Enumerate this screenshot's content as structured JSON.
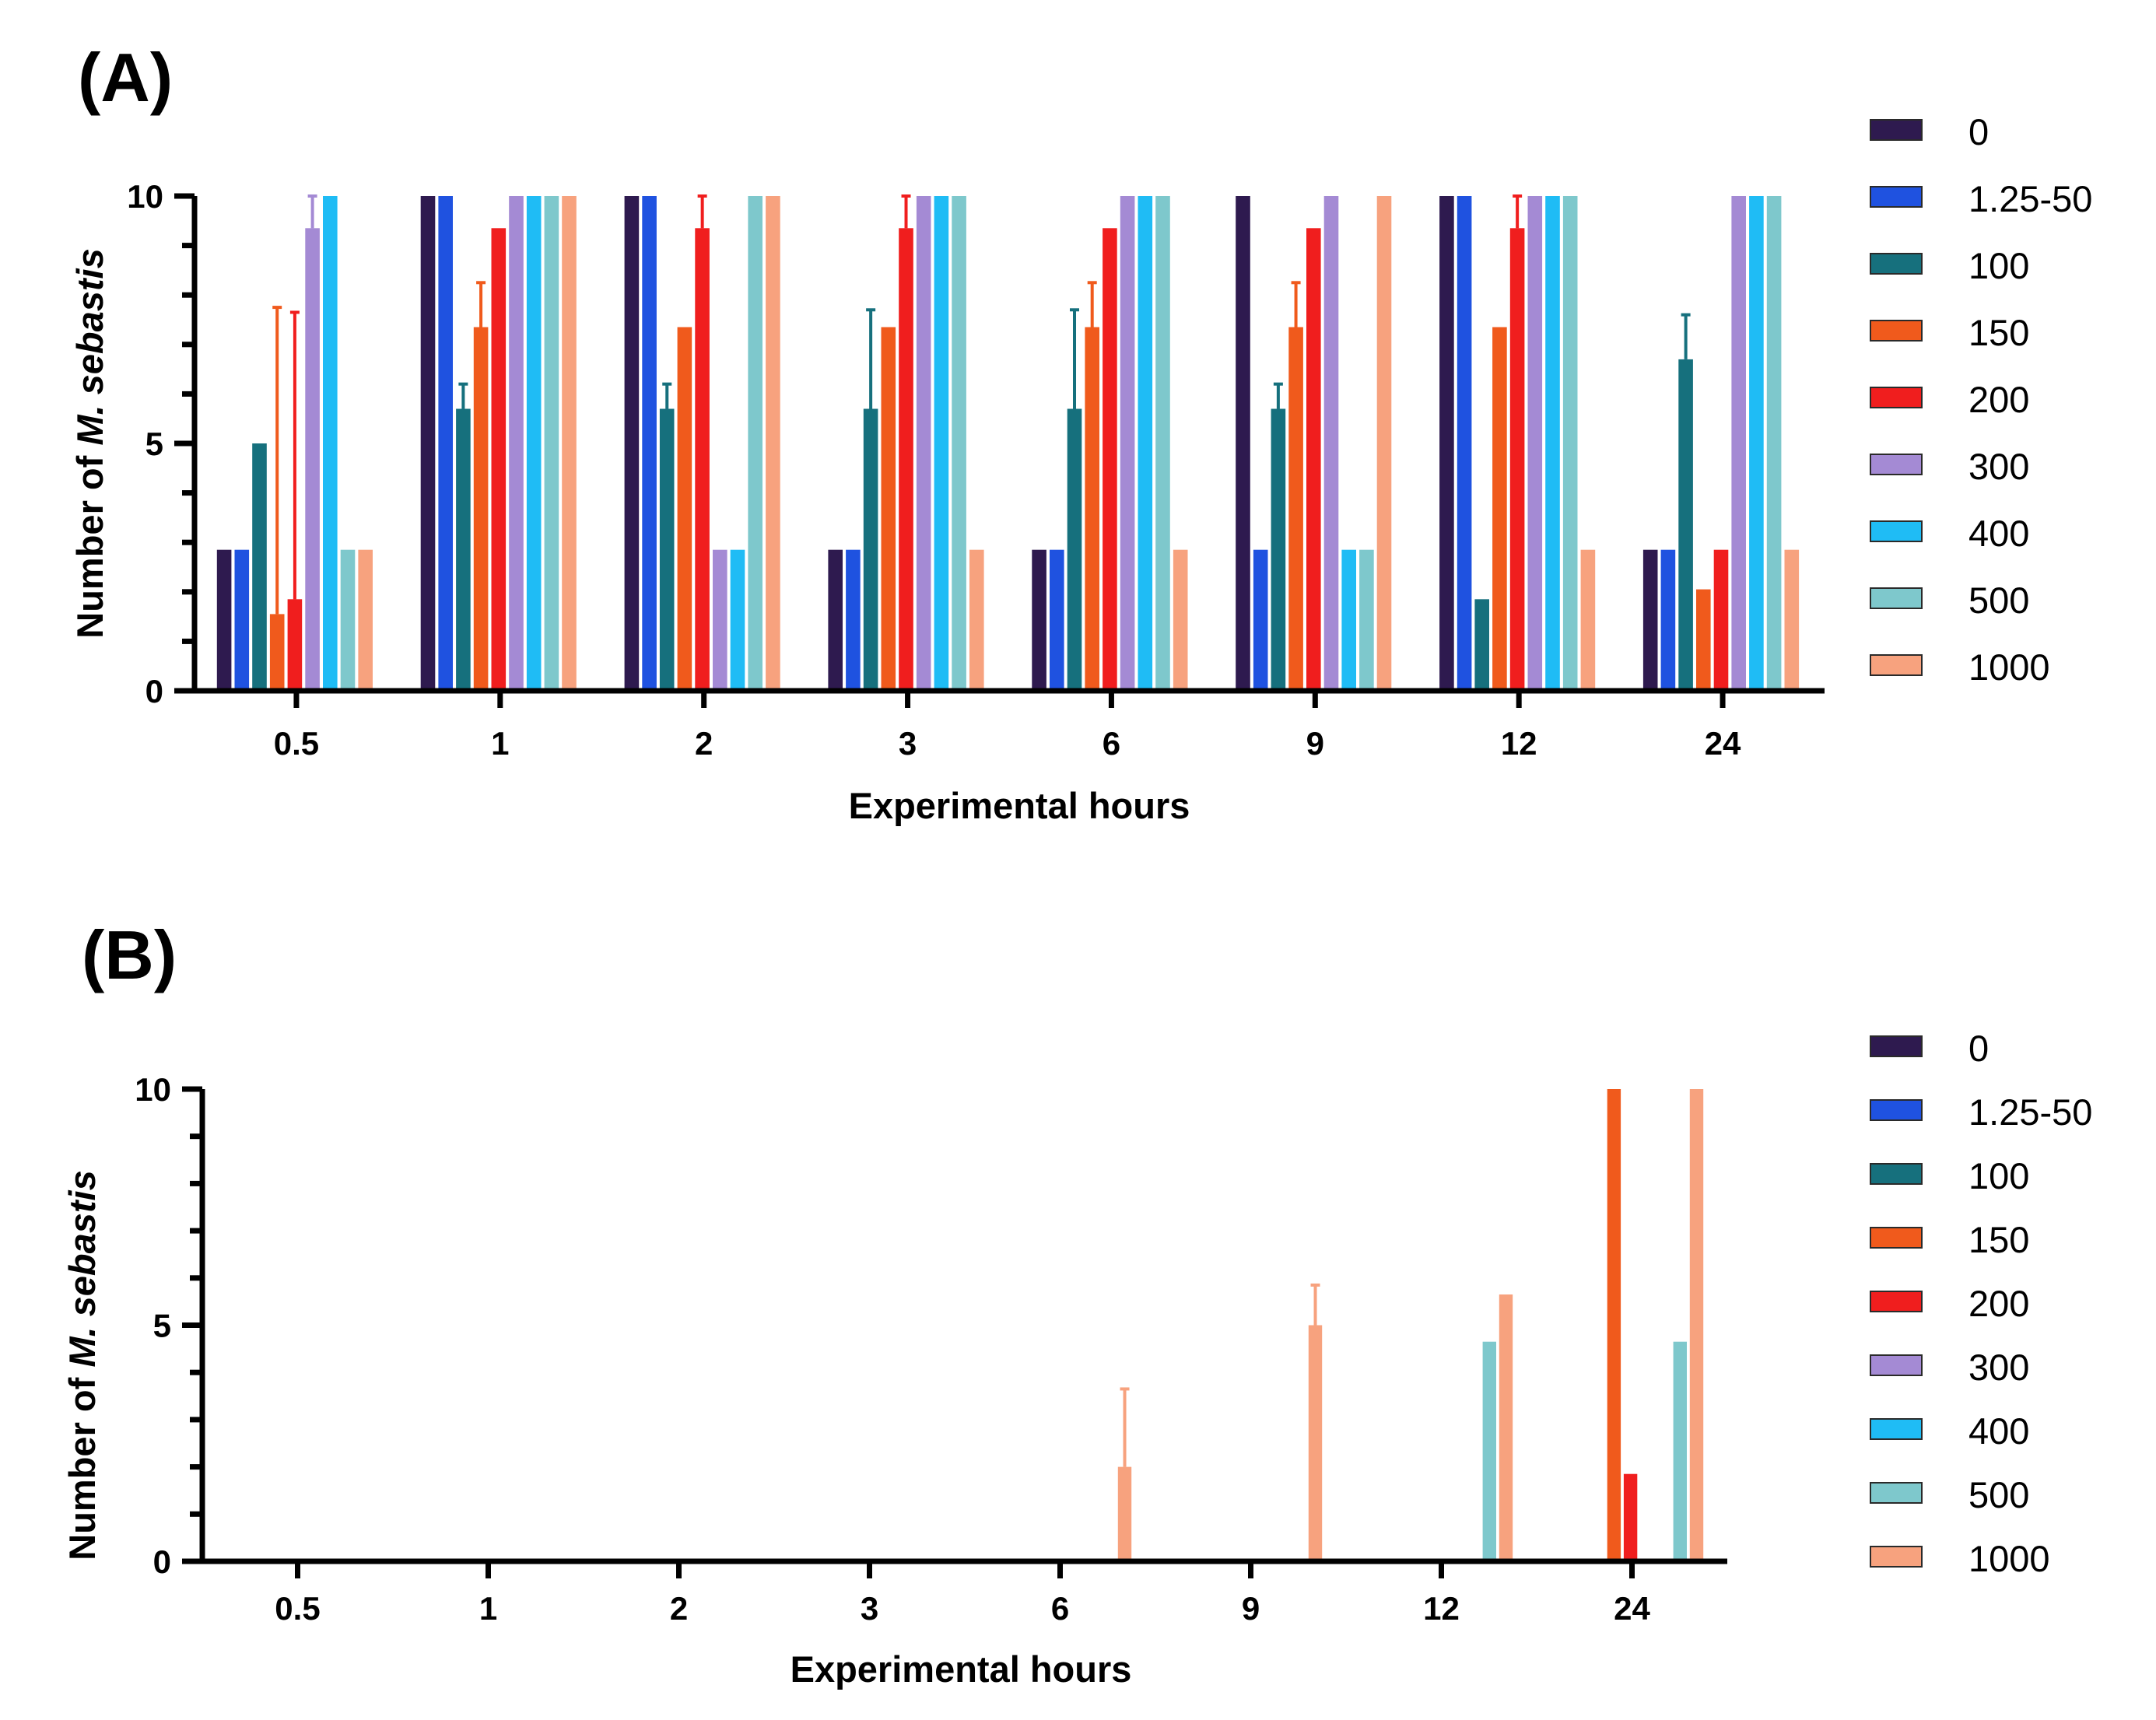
{
  "colors": {
    "0": "#2e1a4f",
    "1.25-50": "#1f52e0",
    "100": "#16707d",
    "150": "#f05a1c",
    "200": "#f01e1e",
    "300": "#a48ad4",
    "400": "#1fbcf5",
    "500": "#7ec8cc",
    "1000": "#f7a27e"
  },
  "chart_data": [
    {
      "type": "bar",
      "panel_label": "(A)",
      "xlabel": "Experimental hours",
      "ylabel_prefix": "Number of ",
      "ylabel_italic": "M. sebastis",
      "ylim": [
        0,
        10
      ],
      "yticks": [
        "0",
        "5",
        "10"
      ],
      "categories": [
        "0.5",
        "1",
        "2",
        "3",
        "6",
        "9",
        "12",
        "24"
      ],
      "legend": [
        "0",
        "1.25-50",
        "100",
        "150",
        "200",
        "300",
        "400",
        "500",
        "1000"
      ],
      "series": [
        {
          "name": "0",
          "values": [
            2.85,
            10,
            10,
            2.85,
            2.85,
            10,
            10,
            2.85
          ],
          "err": [
            0,
            0,
            0,
            0,
            0,
            0,
            0,
            0
          ]
        },
        {
          "name": "1.25-50",
          "values": [
            2.85,
            10,
            10,
            2.85,
            2.85,
            2.85,
            10,
            2.85
          ],
          "err": [
            0,
            0,
            0,
            0,
            0,
            0,
            0,
            0
          ]
        },
        {
          "name": "100",
          "values": [
            5.0,
            5.7,
            5.7,
            5.7,
            5.7,
            5.7,
            1.85,
            6.7
          ],
          "err": [
            0,
            0.5,
            0.5,
            2.0,
            2.0,
            0.5,
            0,
            0.9
          ]
        },
        {
          "name": "150",
          "values": [
            1.55,
            7.35,
            7.35,
            7.35,
            7.35,
            7.35,
            7.35,
            2.05
          ],
          "err": [
            6.2,
            0.9,
            0,
            0,
            0.9,
            0.9,
            0,
            0
          ]
        },
        {
          "name": "200",
          "values": [
            1.85,
            9.35,
            9.35,
            9.35,
            9.35,
            9.35,
            9.35,
            2.85
          ],
          "err": [
            5.8,
            0,
            0.65,
            0.65,
            0,
            0,
            0.65,
            0
          ]
        },
        {
          "name": "300",
          "values": [
            9.35,
            10,
            2.85,
            10,
            10,
            10,
            10,
            10
          ],
          "err": [
            0.65,
            0,
            0,
            0,
            0,
            0,
            0,
            0
          ]
        },
        {
          "name": "400",
          "values": [
            10,
            10,
            2.85,
            10,
            10,
            2.85,
            10,
            10
          ],
          "err": [
            0,
            0,
            0,
            0,
            0,
            0,
            0,
            0
          ]
        },
        {
          "name": "500",
          "values": [
            2.85,
            10,
            10,
            10,
            10,
            2.85,
            10,
            10
          ],
          "err": [
            0,
            0,
            0,
            0,
            0,
            0,
            0,
            0
          ]
        },
        {
          "name": "1000",
          "values": [
            2.85,
            10,
            10,
            2.85,
            2.85,
            10,
            2.85,
            2.85
          ],
          "err": [
            0,
            0,
            0,
            0,
            0,
            0,
            0,
            0
          ]
        }
      ]
    },
    {
      "type": "bar",
      "panel_label": "(B)",
      "xlabel": "Experimental hours",
      "ylabel_prefix": "Number of ",
      "ylabel_italic": "M. sebastis",
      "ylim": [
        0,
        10
      ],
      "yticks": [
        "0",
        "5",
        "10"
      ],
      "categories": [
        "0.5",
        "1",
        "2",
        "3",
        "6",
        "9",
        "12",
        "24"
      ],
      "legend": [
        "0",
        "1.25-50",
        "100",
        "150",
        "200",
        "300",
        "400",
        "500",
        "1000"
      ],
      "series": [
        {
          "name": "0",
          "values": [
            0,
            0,
            0,
            0,
            0,
            0,
            0,
            0
          ],
          "err": [
            0,
            0,
            0,
            0,
            0,
            0,
            0,
            0
          ]
        },
        {
          "name": "1.25-50",
          "values": [
            0,
            0,
            0,
            0,
            0,
            0,
            0,
            0
          ],
          "err": [
            0,
            0,
            0,
            0,
            0,
            0,
            0,
            0
          ]
        },
        {
          "name": "100",
          "values": [
            0,
            0,
            0,
            0,
            0,
            0,
            0,
            0
          ],
          "err": [
            0,
            0,
            0,
            0,
            0,
            0,
            0,
            0
          ]
        },
        {
          "name": "150",
          "values": [
            0,
            0,
            0,
            0,
            0,
            0,
            0,
            10
          ],
          "err": [
            0,
            0,
            0,
            0,
            0,
            0,
            0,
            0
          ]
        },
        {
          "name": "200",
          "values": [
            0,
            0,
            0,
            0,
            0,
            0,
            0,
            1.85
          ],
          "err": [
            0,
            0,
            0,
            0,
            0,
            0,
            0,
            0
          ]
        },
        {
          "name": "300",
          "values": [
            0,
            0,
            0,
            0,
            0,
            0,
            0,
            0
          ],
          "err": [
            0,
            0,
            0,
            0,
            0,
            0,
            0,
            0
          ]
        },
        {
          "name": "400",
          "values": [
            0,
            0,
            0,
            0,
            0,
            0,
            0,
            0
          ],
          "err": [
            0,
            0,
            0,
            0,
            0,
            0,
            0,
            0
          ]
        },
        {
          "name": "500",
          "values": [
            0,
            0,
            0,
            0,
            0,
            0,
            4.65,
            4.65
          ],
          "err": [
            0,
            0,
            0,
            0,
            0,
            0,
            0,
            0
          ]
        },
        {
          "name": "1000",
          "values": [
            0,
            0,
            0,
            0,
            2.0,
            5.0,
            5.65,
            10
          ],
          "err": [
            0,
            0,
            0,
            0,
            1.65,
            0.85,
            0,
            0
          ]
        }
      ]
    }
  ]
}
